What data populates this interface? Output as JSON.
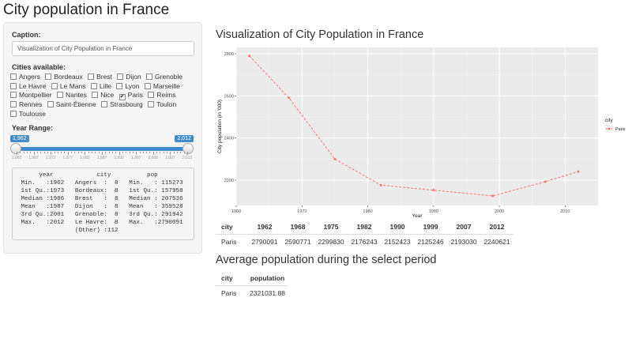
{
  "page": {
    "title": "City population in France"
  },
  "sidebar": {
    "caption_label": "Caption:",
    "caption_value": "Visualization of City Population in France",
    "cities_label": "Cities available:",
    "cities": [
      {
        "label": "Angers",
        "checked": false
      },
      {
        "label": "Bordeaux",
        "checked": false
      },
      {
        "label": "Brest",
        "checked": false
      },
      {
        "label": "Dijon",
        "checked": false
      },
      {
        "label": "Grenoble",
        "checked": false
      },
      {
        "label": "Le Havre",
        "checked": false
      },
      {
        "label": "Le Mans",
        "checked": false
      },
      {
        "label": "Lille",
        "checked": false
      },
      {
        "label": "Lyon",
        "checked": false
      },
      {
        "label": "Marseille",
        "checked": false
      },
      {
        "label": "Montpellier",
        "checked": false
      },
      {
        "label": "Nantes",
        "checked": false
      },
      {
        "label": "Nice",
        "checked": false
      },
      {
        "label": "Paris",
        "checked": true
      },
      {
        "label": "Reims",
        "checked": false
      },
      {
        "label": "Rennes",
        "checked": false
      },
      {
        "label": "Saint-Étienne",
        "checked": false
      },
      {
        "label": "Strasbourg",
        "checked": false
      },
      {
        "label": "Toulon",
        "checked": false
      },
      {
        "label": "Toulouse",
        "checked": false
      }
    ],
    "year_label": "Year Range:",
    "slider": {
      "from": "1,962",
      "to": "2,012",
      "tick_labels": [
        "1,962",
        "1,967",
        "1,972",
        "1,977",
        "1,982",
        "1,987",
        "1,992",
        "1,997",
        "2,002",
        "2,007",
        "2,012"
      ]
    },
    "summary": {
      "lines": [
        "      year            city          pop         ",
        " Min.   :1962   Angers  :  8   Min.   : 115273  ",
        " 1st Qu.:1973   Bordeaux:  8   1st Qu.: 157958  ",
        " Median :1986   Brest   :  8   Median : 207536  ",
        " Mean   :1987   Dijon   :  8   Mean   : 359528  ",
        " 3rd Qu.:2001   Grenoble:  8   3rd Qu.: 291942  ",
        " Max.   :2012   Le Havre:  8   Max.   :2790091  ",
        "                (Other) :112                    "
      ]
    }
  },
  "main": {
    "viz_title": "Visualization of City Population in France",
    "avg_title": "Average population during the select period"
  },
  "chart_data": {
    "type": "line",
    "title": "",
    "xlabel": "Year",
    "ylabel": "City population (in '000)",
    "xlim": [
      1960,
      2015
    ],
    "ylim": [
      2080,
      2830
    ],
    "x_ticks": [
      1960,
      1970,
      1980,
      1990,
      2000,
      2010
    ],
    "y_ticks": [
      2200,
      2400,
      2600,
      2800
    ],
    "grid": true,
    "legend": {
      "title": "city",
      "placement": "right"
    },
    "series": [
      {
        "name": "Paris",
        "color": "#f8766d",
        "x": [
          1962,
          1968,
          1975,
          1982,
          1990,
          1999,
          2007,
          2012
        ],
        "y": [
          2790.091,
          2590.771,
          2299.83,
          2176.243,
          2152.423,
          2125.246,
          2193.03,
          2240.621
        ]
      }
    ]
  },
  "population_table": {
    "headers": [
      "city",
      "1962",
      "1968",
      "1975",
      "1982",
      "1990",
      "1999",
      "2007",
      "2012"
    ],
    "rows": [
      [
        "Paris",
        "2790091",
        "2590771",
        "2299830",
        "2176243",
        "2152423",
        "2125246",
        "2193030",
        "2240621"
      ]
    ]
  },
  "average_table": {
    "headers": [
      "city",
      "population"
    ],
    "rows": [
      [
        "Paris",
        "2321031.88"
      ]
    ]
  }
}
